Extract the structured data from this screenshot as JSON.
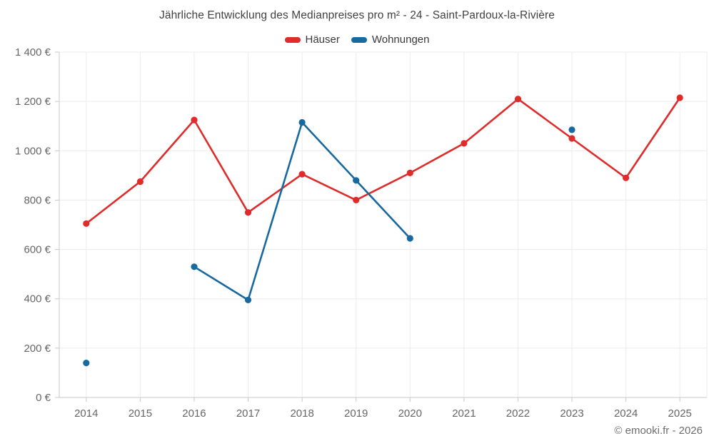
{
  "title": "Jährliche Entwicklung des Medianpreises pro m² - 24 - Saint-Pardoux-la-Rivière",
  "watermark": "© emooki.fr - 2026",
  "chart_data": {
    "type": "line",
    "title": "Jährliche Entwicklung des Medianpreises pro m² - 24 - Saint-Pardoux-la-Rivière",
    "categories": [
      "2014",
      "2015",
      "2016",
      "2017",
      "2018",
      "2019",
      "2020",
      "2021",
      "2022",
      "2023",
      "2024",
      "2025"
    ],
    "series": [
      {
        "id": "hauser",
        "name": "Häuser",
        "color": "#e02b2b",
        "values": [
          705,
          875,
          1125,
          750,
          905,
          800,
          910,
          1030,
          1210,
          1050,
          890,
          1215
        ]
      },
      {
        "id": "wohnungen",
        "name": "Wohnungen",
        "color": "#17699f",
        "values": [
          140,
          null,
          530,
          395,
          1115,
          880,
          645,
          null,
          null,
          1085,
          null,
          null
        ]
      }
    ],
    "xlabel": "",
    "ylabel": "",
    "ylim": [
      0,
      1400
    ],
    "y_ticks": [
      {
        "value": 0,
        "label": "0 €"
      },
      {
        "value": 200,
        "label": "200 €"
      },
      {
        "value": 400,
        "label": "400 €"
      },
      {
        "value": 600,
        "label": "600 €"
      },
      {
        "value": 800,
        "label": "800 €"
      },
      {
        "value": 1000,
        "label": "1 000 €"
      },
      {
        "value": 1200,
        "label": "1 200 €"
      },
      {
        "value": 1400,
        "label": "1 400 €"
      }
    ],
    "grid": true,
    "legend_position": "top",
    "colors": {
      "grid_line": "#ececec",
      "axis_line": "#c9c9c9",
      "tick_label": "#666666",
      "title_text": "#414141",
      "legend_text": "#383838"
    }
  }
}
